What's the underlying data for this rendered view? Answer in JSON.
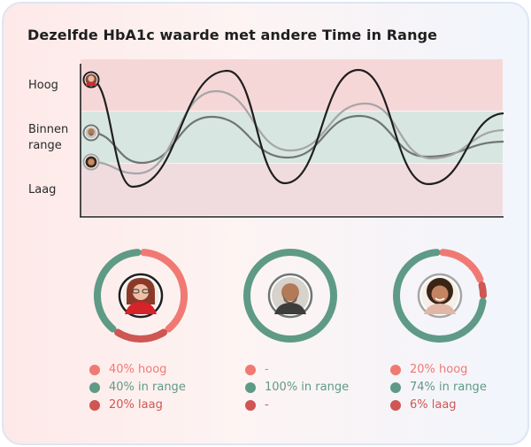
{
  "title": "Dezelfde HbA1c waarde met andere Time in Range",
  "bands": {
    "high": "Hoog",
    "range_line1": "Binnen",
    "range_line2": "range",
    "low": "Laag"
  },
  "colors": {
    "high": "#f07a73",
    "in_range": "#5f9a86",
    "low": "#cf5652",
    "band_high": "#f6d7d8",
    "band_range": "#d8e6e1",
    "band_low": "#f0dcdf"
  },
  "chart_data": {
    "type": "line",
    "y_bands": [
      "Laag",
      "Binnen range",
      "Hoog"
    ],
    "series": [
      {
        "person": "woman-with-glasses",
        "color": "#1f1f1f",
        "description": "large swings"
      },
      {
        "person": "woman-curly-hair",
        "color": "#a6a6a6",
        "description": "moderate swings"
      },
      {
        "person": "bearded-man",
        "color": "#6f7673",
        "description": "small swings"
      }
    ]
  },
  "profiles": [
    {
      "person": "woman-with-glasses",
      "high_pct": 40,
      "in_range_pct": 40,
      "low_pct": 20,
      "legend": {
        "high": "40% hoog",
        "in_range": "40% in range",
        "low": "20% laag"
      }
    },
    {
      "person": "bearded-man",
      "high_pct": 0,
      "in_range_pct": 100,
      "low_pct": 0,
      "legend": {
        "high": "-",
        "in_range": "100% in range",
        "low": "-"
      }
    },
    {
      "person": "woman-curly-hair",
      "high_pct": 20,
      "in_range_pct": 74,
      "low_pct": 6,
      "legend": {
        "high": "20% hoog",
        "in_range": "74% in range",
        "low": "6% laag"
      }
    }
  ]
}
